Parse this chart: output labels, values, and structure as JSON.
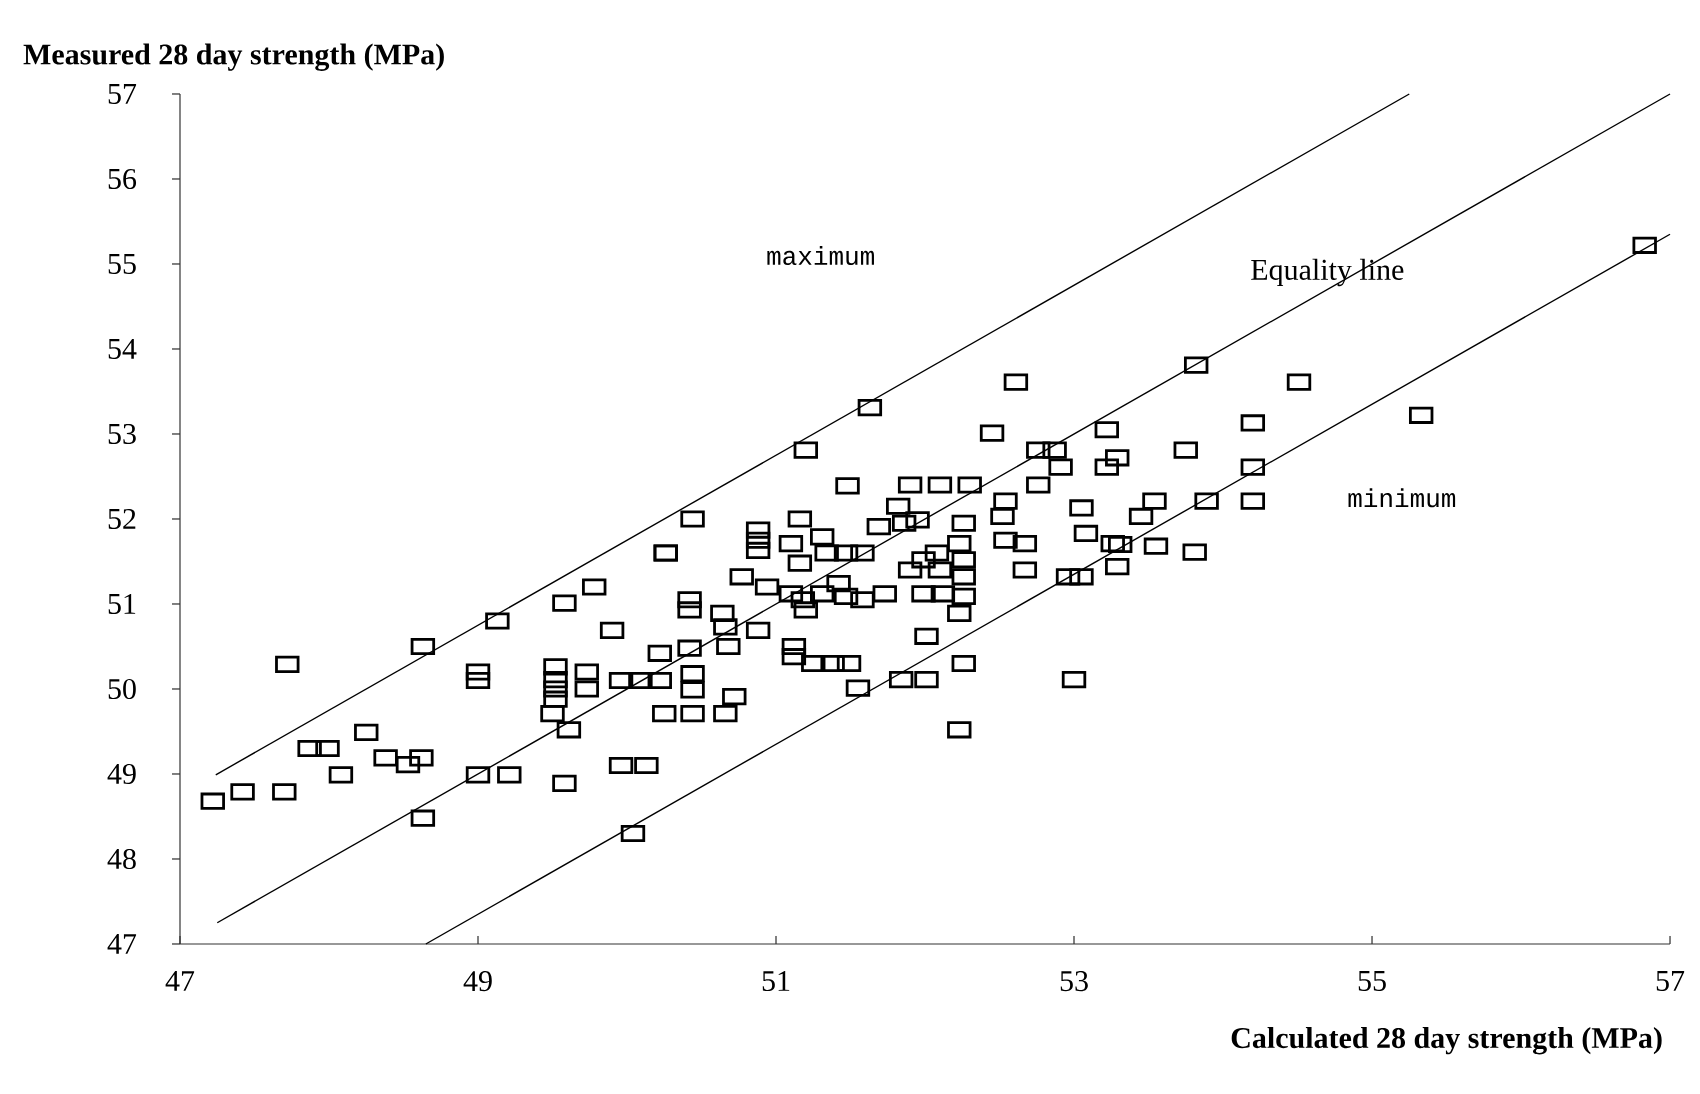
{
  "chart_data": {
    "type": "scatter",
    "xlabel": "Calculated 28 day strength (MPa)",
    "ylabel": "Measured 28 day strength (MPa)",
    "xlim": [
      47,
      57
    ],
    "ylim": [
      47,
      57
    ],
    "xticks": [
      47,
      49,
      51,
      53,
      55,
      57
    ],
    "yticks": [
      47,
      48,
      49,
      50,
      51,
      52,
      53,
      54,
      55,
      56,
      57
    ],
    "annotations": [
      "maximum",
      "Equality line",
      "minimum"
    ],
    "series": [
      {
        "marker": "square",
        "color": "#000000",
        "x": [
          47.22,
          47.42,
          47.7,
          47.72,
          47.87,
          47.99,
          48.08,
          48.25,
          48.38,
          48.53,
          48.62,
          48.63,
          48.63,
          49.13,
          49.0,
          49.21,
          49.0,
          49.0,
          49.58,
          49.78,
          49.9,
          49.58,
          49.5,
          49.52,
          49.52,
          49.52,
          49.52,
          49.61,
          49.73,
          49.73,
          49.96,
          50.09,
          50.22,
          50.22,
          50.25,
          49.96,
          50.13,
          50.04,
          50.26,
          51.63,
          51.2,
          50.44,
          50.26,
          51.48,
          52.45,
          52.76,
          52.87,
          53.22,
          52.91,
          53.22,
          51.9,
          52.1,
          52.3,
          52.76,
          52.54,
          53.05,
          53.08,
          53.26,
          51.16,
          50.88,
          50.88,
          50.88,
          51.1,
          51.31,
          51.69,
          51.82,
          51.86,
          51.95,
          52.26,
          52.23,
          52.52,
          52.54,
          52.67,
          52.67,
          52.96,
          53.05,
          51.47,
          51.58,
          51.34,
          51.16,
          50.77,
          50.94,
          51.1,
          51.18,
          51.2,
          51.31,
          51.42,
          51.47,
          51.58,
          51.73,
          51.9,
          51.99,
          52.1,
          52.08,
          52.26,
          52.26,
          51.99,
          52.12,
          52.26,
          52.23,
          50.42,
          50.42,
          50.64,
          50.66,
          50.88,
          50.68,
          50.42,
          50.44,
          50.44,
          50.72,
          50.44,
          50.66,
          51.12,
          51.12,
          51.25,
          51.38,
          51.49,
          51.55,
          51.84,
          52.01,
          52.01,
          52.26,
          52.23,
          53.0,
          56.83,
          53.82,
          54.51,
          55.33,
          54.2,
          53.75,
          54.2,
          54.2,
          53.89,
          53.54,
          53.29,
          53.45,
          53.31,
          53.55,
          53.81,
          53.29,
          52.61
        ],
        "values": [
          48.68,
          48.79,
          48.79,
          50.29,
          49.3,
          49.3,
          48.99,
          49.49,
          49.19,
          49.11,
          49.19,
          50.5,
          48.48,
          50.8,
          48.99,
          48.99,
          50.1,
          50.2,
          51.01,
          51.2,
          50.69,
          48.89,
          49.71,
          50.26,
          50.11,
          50.0,
          49.88,
          49.52,
          50.2,
          50.0,
          50.1,
          50.1,
          50.1,
          50.42,
          49.71,
          49.1,
          49.1,
          48.3,
          51.6,
          53.31,
          52.81,
          52.0,
          51.6,
          52.39,
          53.01,
          52.81,
          52.81,
          53.05,
          52.61,
          52.61,
          52.4,
          52.4,
          52.4,
          52.4,
          52.21,
          52.13,
          51.83,
          51.71,
          52.0,
          51.87,
          51.75,
          51.63,
          51.71,
          51.79,
          51.91,
          52.15,
          51.95,
          51.99,
          51.95,
          51.71,
          52.03,
          51.75,
          51.71,
          51.4,
          51.32,
          51.32,
          51.6,
          51.6,
          51.6,
          51.48,
          51.32,
          51.2,
          51.12,
          51.05,
          50.93,
          51.12,
          51.24,
          51.09,
          51.05,
          51.12,
          51.4,
          51.52,
          51.4,
          51.6,
          51.52,
          51.32,
          51.12,
          51.12,
          51.09,
          50.89,
          51.05,
          50.93,
          50.89,
          50.73,
          50.69,
          50.5,
          50.48,
          50.18,
          49.99,
          49.91,
          49.71,
          49.71,
          50.5,
          50.38,
          50.3,
          50.3,
          50.3,
          50.01,
          50.11,
          50.11,
          50.62,
          50.3,
          49.52,
          50.11,
          55.22,
          53.81,
          53.61,
          53.22,
          53.13,
          52.81,
          52.61,
          52.21,
          52.21,
          52.21,
          52.72,
          52.03,
          51.7,
          51.68,
          51.61,
          51.44,
          53.61
        ]
      },
      {
        "type": "line",
        "marker": "none",
        "color": "#000000",
        "x": [
          47.24,
          55.25
        ],
        "values": [
          48.99,
          57
        ]
      },
      {
        "type": "line",
        "marker": "none",
        "color": "#000000",
        "x": [
          47.25,
          57
        ],
        "values": [
          47.25,
          57
        ]
      },
      {
        "type": "line",
        "marker": "none",
        "color": "#000000",
        "x": [
          48.65,
          57
        ],
        "values": [
          47,
          55.35
        ]
      }
    ]
  }
}
